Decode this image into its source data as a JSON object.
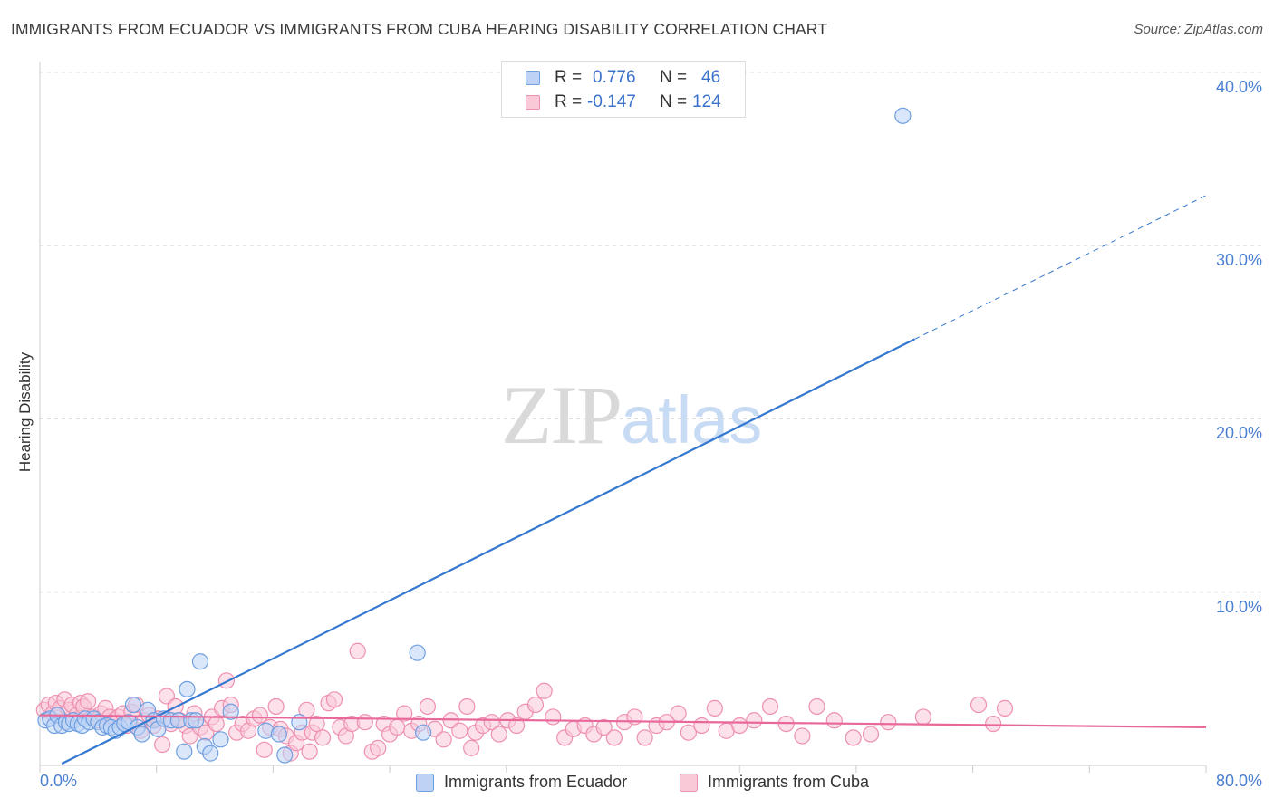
{
  "title": "IMMIGRANTS FROM ECUADOR VS IMMIGRANTS FROM CUBA HEARING DISABILITY CORRELATION CHART",
  "source": "Source: ZipAtlas.com",
  "watermark": {
    "zip": "ZIP",
    "atlas": "atlas"
  },
  "legend": {
    "rows": [
      {
        "r_label": "R =",
        "r_value": "0.776",
        "n_label": "N =",
        "n_value": "46"
      },
      {
        "r_label": "R =",
        "r_value": "-0.147",
        "n_label": "N =",
        "n_value": "124"
      }
    ]
  },
  "bottom_legend": [
    "Immigrants from Ecuador",
    "Immigrants from Cuba"
  ],
  "colors": {
    "ecuador_fill": "#bcd3f5",
    "ecuador_stroke": "#6f9fe0",
    "ecuador_line": "#3478d0",
    "cuba_fill": "#f9c9d8",
    "cuba_stroke": "#ee90b0",
    "cuba_line": "#e8689a",
    "tick_text": "#4a7fd1",
    "grid": "#dddddd"
  },
  "chart_data": {
    "type": "scatter",
    "title": "IMMIGRANTS FROM ECUADOR VS IMMIGRANTS FROM CUBA HEARING DISABILITY CORRELATION CHART",
    "xlabel": "",
    "ylabel": "Hearing Disability",
    "xlim": [
      0,
      80
    ],
    "ylim": [
      0,
      40
    ],
    "x_tick_labels": [
      "0.0%",
      "80.0%"
    ],
    "y_ticks": [
      10,
      20,
      30,
      40
    ],
    "y_tick_labels": [
      "10.0%",
      "20.0%",
      "30.0%",
      "40.0%"
    ],
    "grid": true,
    "series": [
      {
        "name": "Immigrants from Ecuador",
        "r": 0.776,
        "n": 46,
        "trend": {
          "x0": 1.5,
          "y0": 0.1,
          "x1": 60.0,
          "y1": 24.6,
          "dash_to_x": 80.0,
          "dash_to_y": 32.9
        },
        "points": [
          [
            0.4,
            2.6
          ],
          [
            0.7,
            2.7
          ],
          [
            1.0,
            2.3
          ],
          [
            1.2,
            2.9
          ],
          [
            1.5,
            2.3
          ],
          [
            1.8,
            2.5
          ],
          [
            2.0,
            2.4
          ],
          [
            2.3,
            2.6
          ],
          [
            2.6,
            2.4
          ],
          [
            2.9,
            2.3
          ],
          [
            3.1,
            2.7
          ],
          [
            3.4,
            2.5
          ],
          [
            3.7,
            2.7
          ],
          [
            4.0,
            2.5
          ],
          [
            4.3,
            2.2
          ],
          [
            4.6,
            2.3
          ],
          [
            4.9,
            2.2
          ],
          [
            5.2,
            2.0
          ],
          [
            5.5,
            2.2
          ],
          [
            5.8,
            2.4
          ],
          [
            6.1,
            2.5
          ],
          [
            6.4,
            3.5
          ],
          [
            6.7,
            2.2
          ],
          [
            7.0,
            1.8
          ],
          [
            7.4,
            3.2
          ],
          [
            7.8,
            2.6
          ],
          [
            8.1,
            2.1
          ],
          [
            8.5,
            2.7
          ],
          [
            9.0,
            2.6
          ],
          [
            9.5,
            2.6
          ],
          [
            9.9,
            0.8
          ],
          [
            10.1,
            4.4
          ],
          [
            10.4,
            2.6
          ],
          [
            10.7,
            2.6
          ],
          [
            11.0,
            6.0
          ],
          [
            11.3,
            1.1
          ],
          [
            11.7,
            0.7
          ],
          [
            12.4,
            1.5
          ],
          [
            13.1,
            3.1
          ],
          [
            15.5,
            2.0
          ],
          [
            16.4,
            1.8
          ],
          [
            16.8,
            0.6
          ],
          [
            17.8,
            2.5
          ],
          [
            25.9,
            6.5
          ],
          [
            26.3,
            1.9
          ],
          [
            59.2,
            37.5
          ]
        ]
      },
      {
        "name": "Immigrants from Cuba",
        "r": -0.147,
        "n": 124,
        "trend": {
          "x0": 0.0,
          "y0": 2.9,
          "x1": 80.0,
          "y1": 2.2
        },
        "points": [
          [
            0.3,
            3.2
          ],
          [
            0.6,
            3.5
          ],
          [
            0.9,
            3.0
          ],
          [
            1.1,
            3.6
          ],
          [
            1.4,
            3.3
          ],
          [
            1.7,
            3.8
          ],
          [
            2.0,
            3.2
          ],
          [
            2.2,
            3.5
          ],
          [
            2.5,
            2.9
          ],
          [
            2.8,
            3.6
          ],
          [
            3.0,
            3.4
          ],
          [
            3.3,
            3.7
          ],
          [
            3.6,
            2.8
          ],
          [
            3.9,
            2.6
          ],
          [
            4.2,
            3.0
          ],
          [
            4.5,
            3.3
          ],
          [
            4.8,
            2.8
          ],
          [
            5.1,
            2.6
          ],
          [
            5.4,
            2.8
          ],
          [
            5.7,
            3.0
          ],
          [
            6.0,
            2.3
          ],
          [
            6.3,
            3.1
          ],
          [
            6.6,
            3.5
          ],
          [
            6.9,
            2.0
          ],
          [
            7.2,
            2.6
          ],
          [
            7.5,
            2.9
          ],
          [
            7.8,
            2.3
          ],
          [
            8.1,
            2.7
          ],
          [
            8.4,
            1.2
          ],
          [
            8.7,
            4.0
          ],
          [
            9.0,
            2.4
          ],
          [
            9.3,
            3.4
          ],
          [
            9.6,
            2.6
          ],
          [
            10.0,
            2.3
          ],
          [
            10.3,
            1.7
          ],
          [
            10.6,
            3.0
          ],
          [
            11.0,
            2.2
          ],
          [
            11.4,
            1.9
          ],
          [
            11.8,
            2.8
          ],
          [
            12.1,
            2.4
          ],
          [
            12.5,
            3.3
          ],
          [
            12.8,
            4.9
          ],
          [
            13.1,
            3.5
          ],
          [
            13.5,
            1.9
          ],
          [
            13.9,
            2.4
          ],
          [
            14.3,
            2.0
          ],
          [
            14.7,
            2.7
          ],
          [
            15.1,
            2.9
          ],
          [
            15.4,
            0.9
          ],
          [
            15.8,
            2.2
          ],
          [
            16.2,
            3.4
          ],
          [
            16.5,
            2.1
          ],
          [
            16.9,
            1.7
          ],
          [
            17.2,
            0.7
          ],
          [
            17.6,
            1.3
          ],
          [
            18.0,
            1.9
          ],
          [
            18.3,
            3.2
          ],
          [
            18.7,
            1.9
          ],
          [
            19.0,
            2.4
          ],
          [
            19.4,
            1.6
          ],
          [
            19.8,
            3.6
          ],
          [
            20.2,
            3.8
          ],
          [
            20.6,
            2.2
          ],
          [
            21.0,
            1.7
          ],
          [
            21.4,
            2.4
          ],
          [
            21.8,
            6.6
          ],
          [
            22.3,
            2.5
          ],
          [
            22.8,
            0.8
          ],
          [
            23.2,
            1.0
          ],
          [
            23.6,
            2.4
          ],
          [
            24.0,
            1.8
          ],
          [
            24.5,
            2.2
          ],
          [
            25.0,
            3.0
          ],
          [
            25.5,
            2.0
          ],
          [
            26.0,
            2.4
          ],
          [
            26.6,
            3.4
          ],
          [
            27.1,
            2.1
          ],
          [
            27.7,
            1.5
          ],
          [
            28.2,
            2.6
          ],
          [
            28.8,
            2.0
          ],
          [
            29.3,
            3.4
          ],
          [
            29.9,
            1.9
          ],
          [
            30.4,
            2.3
          ],
          [
            31.0,
            2.5
          ],
          [
            31.5,
            1.8
          ],
          [
            32.1,
            2.6
          ],
          [
            32.7,
            2.3
          ],
          [
            33.3,
            3.1
          ],
          [
            34.0,
            3.5
          ],
          [
            34.6,
            4.3
          ],
          [
            35.2,
            2.8
          ],
          [
            36.0,
            1.6
          ],
          [
            36.6,
            2.1
          ],
          [
            37.4,
            2.3
          ],
          [
            38.0,
            1.8
          ],
          [
            38.7,
            2.2
          ],
          [
            39.4,
            1.6
          ],
          [
            40.1,
            2.5
          ],
          [
            40.8,
            2.8
          ],
          [
            41.5,
            1.6
          ],
          [
            42.3,
            2.3
          ],
          [
            43.0,
            2.5
          ],
          [
            43.8,
            3.0
          ],
          [
            44.5,
            1.9
          ],
          [
            45.4,
            2.3
          ],
          [
            46.3,
            3.3
          ],
          [
            47.1,
            2.0
          ],
          [
            48.0,
            2.3
          ],
          [
            49.0,
            2.6
          ],
          [
            50.1,
            3.4
          ],
          [
            51.2,
            2.4
          ],
          [
            52.3,
            1.7
          ],
          [
            53.3,
            3.4
          ],
          [
            54.5,
            2.6
          ],
          [
            55.8,
            1.6
          ],
          [
            57.0,
            1.8
          ],
          [
            58.2,
            2.5
          ],
          [
            60.6,
            2.8
          ],
          [
            64.4,
            3.5
          ],
          [
            65.4,
            2.4
          ],
          [
            66.2,
            3.3
          ],
          [
            29.6,
            1.0
          ],
          [
            18.5,
            0.8
          ]
        ]
      }
    ]
  }
}
